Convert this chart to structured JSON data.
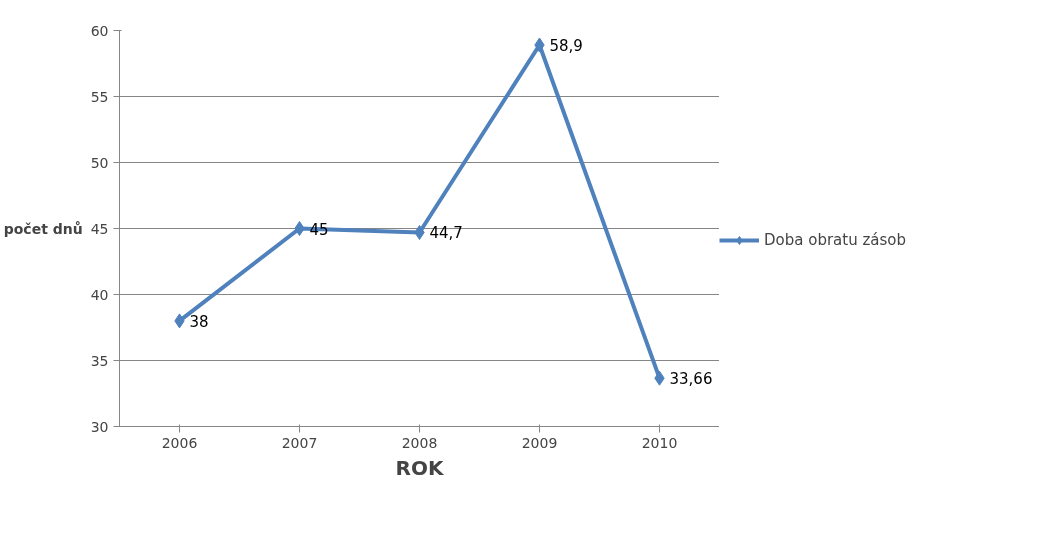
{
  "chart_data": {
    "type": "line",
    "xlabel": "ROK",
    "ylabel": "počet dnů",
    "categories": [
      "2006",
      "2007",
      "2008",
      "2009",
      "2010"
    ],
    "series": [
      {
        "name": "Doba obratu zásob",
        "color": "#4f81bd",
        "values": [
          38,
          45,
          44.7,
          58.9,
          33.66
        ],
        "value_labels": [
          "38",
          "45",
          "44,7",
          "58,9",
          "33,66"
        ]
      }
    ],
    "ylim": [
      30,
      60
    ],
    "yticks": [
      30,
      35,
      40,
      45,
      50,
      55,
      60
    ],
    "grid": "y",
    "legend": "right",
    "marker": "diamond",
    "line_style": "solid"
  }
}
